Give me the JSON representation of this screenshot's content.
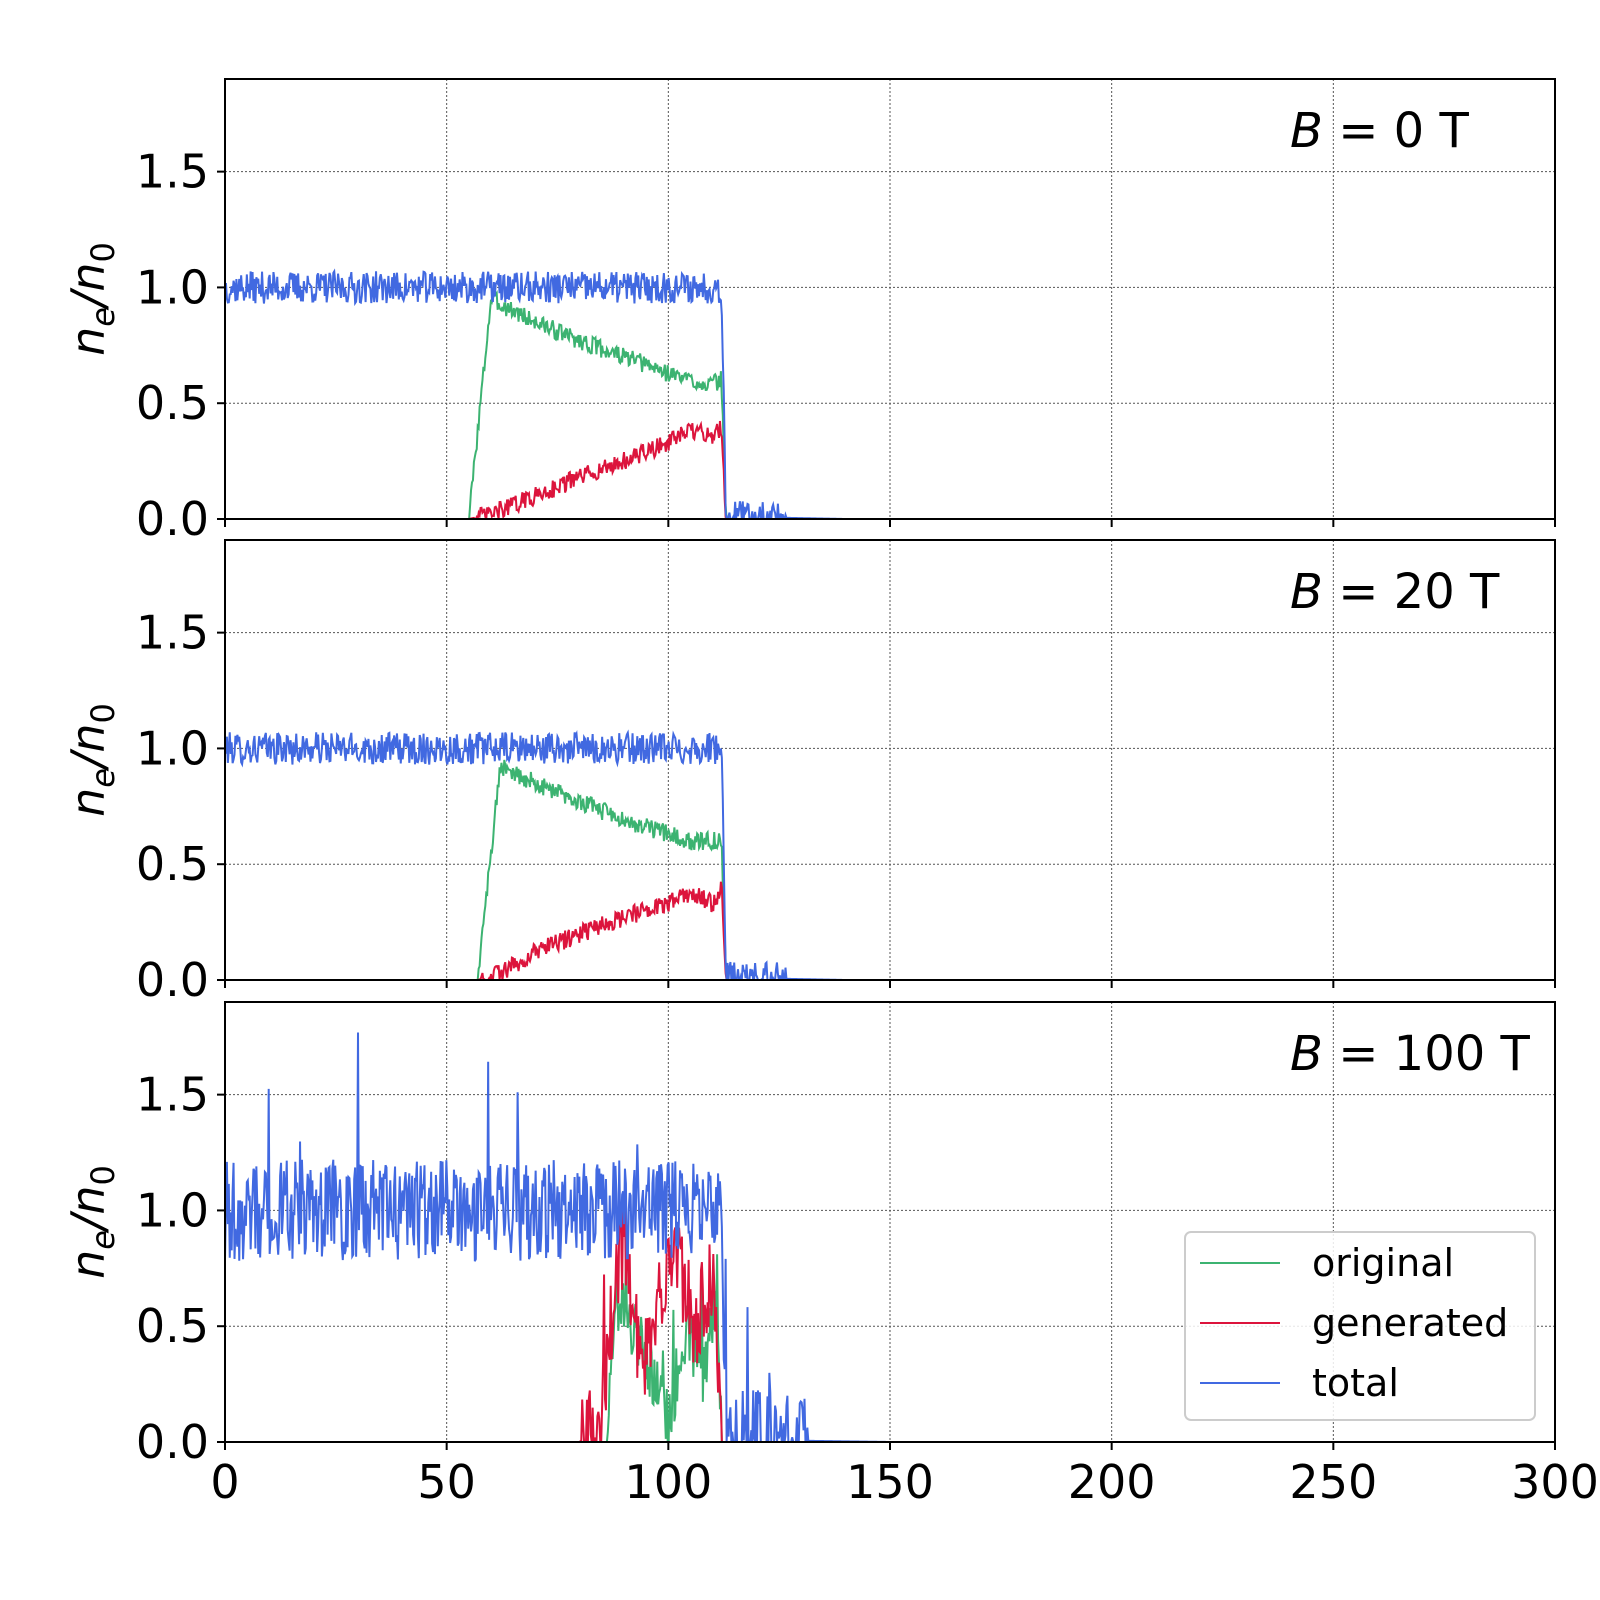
{
  "chart_data": [
    {
      "type": "line",
      "annotation": {
        "var": "B",
        "eq": " = ",
        "val": "0 T"
      },
      "ylabel": {
        "base": "n",
        "sub1": "e",
        "slash": "/",
        "base2": "n",
        "sub2": "0"
      },
      "xlim": [
        0,
        300
      ],
      "ylim": [
        0,
        1.9
      ],
      "yticks": [
        "0.0",
        "0.5",
        "1.0",
        "1.5"
      ],
      "yticks_values": [
        0,
        0.5,
        1.0,
        1.5
      ],
      "xticks_values": [
        0,
        50,
        100,
        150,
        200,
        250,
        300
      ],
      "grid": true,
      "series": [
        {
          "name": "original",
          "color": "#3cb371",
          "x": [
            0,
            55,
            60,
            70,
            80,
            90,
            100,
            105,
            110,
            112,
            113,
            300
          ],
          "y": [
            0,
            0,
            0.95,
            0.85,
            0.77,
            0.7,
            0.63,
            0.6,
            0.58,
            0.6,
            0,
            0
          ]
        },
        {
          "name": "generated",
          "color": "#dc143c",
          "x": [
            0,
            55,
            60,
            70,
            80,
            90,
            100,
            105,
            110,
            112,
            113,
            300
          ],
          "y": [
            0,
            0,
            0.02,
            0.1,
            0.18,
            0.25,
            0.33,
            0.38,
            0.36,
            0.4,
            0,
            0
          ]
        },
        {
          "name": "total",
          "color": "#4169e1",
          "x": [
            0,
            10,
            20,
            30,
            40,
            50,
            60,
            70,
            80,
            90,
            100,
            110,
            112,
            113,
            140,
            300
          ],
          "y": [
            1.0,
            1.0,
            1.0,
            1.0,
            1.0,
            1.0,
            1.0,
            1.0,
            1.0,
            1.0,
            1.0,
            1.0,
            1.0,
            0.01,
            0,
            0
          ]
        }
      ]
    },
    {
      "type": "line",
      "annotation": {
        "var": "B",
        "eq": " = ",
        "val": "20 T"
      },
      "ylabel": {
        "base": "n",
        "sub1": "e",
        "slash": "/",
        "base2": "n",
        "sub2": "0"
      },
      "xlim": [
        0,
        300
      ],
      "ylim": [
        0,
        1.9
      ],
      "yticks": [
        "0.0",
        "0.5",
        "1.0",
        "1.5"
      ],
      "yticks_values": [
        0,
        0.5,
        1.0,
        1.5
      ],
      "xticks_values": [
        0,
        50,
        100,
        150,
        200,
        250,
        300
      ],
      "grid": true,
      "series": [
        {
          "name": "original",
          "color": "#3cb371",
          "x": [
            0,
            57,
            62,
            70,
            80,
            90,
            100,
            105,
            110,
            112,
            113,
            300
          ],
          "y": [
            0,
            0,
            0.92,
            0.85,
            0.77,
            0.69,
            0.63,
            0.6,
            0.6,
            0.6,
            0,
            0
          ]
        },
        {
          "name": "generated",
          "color": "#dc143c",
          "x": [
            0,
            57,
            62,
            70,
            80,
            90,
            100,
            105,
            110,
            112,
            113,
            300
          ],
          "y": [
            0,
            0,
            0.03,
            0.12,
            0.2,
            0.27,
            0.33,
            0.38,
            0.33,
            0.4,
            0,
            0
          ]
        },
        {
          "name": "total",
          "color": "#4169e1",
          "x": [
            0,
            10,
            20,
            30,
            40,
            50,
            60,
            70,
            80,
            90,
            100,
            110,
            112,
            113,
            140,
            300
          ],
          "y": [
            1.0,
            1.0,
            1.0,
            1.0,
            1.0,
            1.0,
            1.0,
            1.0,
            1.0,
            1.0,
            1.0,
            1.0,
            1.0,
            0.01,
            0,
            0
          ]
        }
      ]
    },
    {
      "type": "line",
      "annotation": {
        "var": "B",
        "eq": " = ",
        "val": "100 T"
      },
      "ylabel": {
        "base": "n",
        "sub1": "e",
        "slash": "/",
        "base2": "n",
        "sub2": "0"
      },
      "xlim": [
        0,
        300
      ],
      "ylim": [
        0,
        1.9
      ],
      "yticks": [
        "0.0",
        "0.5",
        "1.0",
        "1.5"
      ],
      "yticks_values": [
        0,
        0.5,
        1.0,
        1.5
      ],
      "xticks": [
        "0",
        "50",
        "100",
        "150",
        "200",
        "250",
        "300"
      ],
      "xticks_values": [
        0,
        50,
        100,
        150,
        200,
        250,
        300
      ],
      "grid": true,
      "legend": {
        "placement": "lower-right",
        "entries": [
          "original",
          "generated",
          "total"
        ]
      },
      "series": [
        {
          "name": "original",
          "color": "#3cb371",
          "x": [
            0,
            86,
            88,
            92,
            96,
            100,
            104,
            108,
            111,
            112,
            300
          ],
          "y": [
            0,
            0,
            0.6,
            0.5,
            0.3,
            0.1,
            0.5,
            0.3,
            0.7,
            0,
            0
          ]
        },
        {
          "name": "generated",
          "color": "#dc143c",
          "x": [
            0,
            80,
            85,
            88,
            90,
            94,
            98,
            102,
            106,
            110,
            112,
            300
          ],
          "y": [
            0,
            0,
            0.1,
            0.7,
            0.9,
            0.3,
            0.6,
            0.8,
            0.5,
            0.7,
            0,
            0
          ]
        },
        {
          "name": "total",
          "color": "#4169e1",
          "x": [
            0,
            10,
            20,
            30,
            40,
            50,
            60,
            70,
            80,
            90,
            100,
            110,
            112,
            113,
            150,
            300
          ],
          "y": [
            1.0,
            1.0,
            1.0,
            1.0,
            1.0,
            1.0,
            1.0,
            1.0,
            1.0,
            1.0,
            1.0,
            1.0,
            1.0,
            0.01,
            0,
            0
          ]
        }
      ]
    }
  ]
}
